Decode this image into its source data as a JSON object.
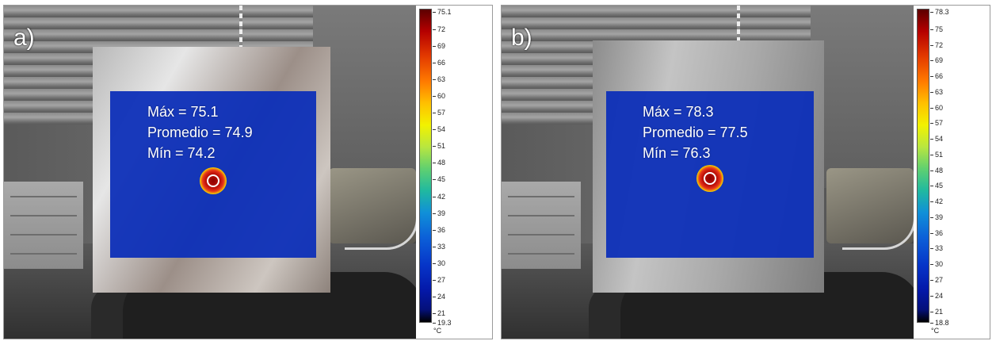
{
  "panels": [
    {
      "label": "a)",
      "stats": [
        "Máx = 75.1",
        "Promedio = 74.9",
        "Mín = 74.2"
      ],
      "scale": {
        "max": "75.1",
        "ticks": [
          "72",
          "69",
          "66",
          "63",
          "60",
          "57",
          "54",
          "51",
          "48",
          "45",
          "42",
          "39",
          "36",
          "33",
          "30",
          "27",
          "24",
          "21"
        ],
        "min": "19.3",
        "unit": "°C"
      }
    },
    {
      "label": "b)",
      "stats": [
        "Máx = 78.3",
        "Promedio = 77.5",
        "Mín = 76.3"
      ],
      "scale": {
        "max": "78.3",
        "ticks": [
          "75",
          "72",
          "69",
          "66",
          "63",
          "60",
          "57",
          "54",
          "51",
          "48",
          "45",
          "42",
          "39",
          "36",
          "33",
          "30",
          "27",
          "24",
          "21"
        ],
        "min": "18.8",
        "unit": "°C"
      }
    }
  ]
}
